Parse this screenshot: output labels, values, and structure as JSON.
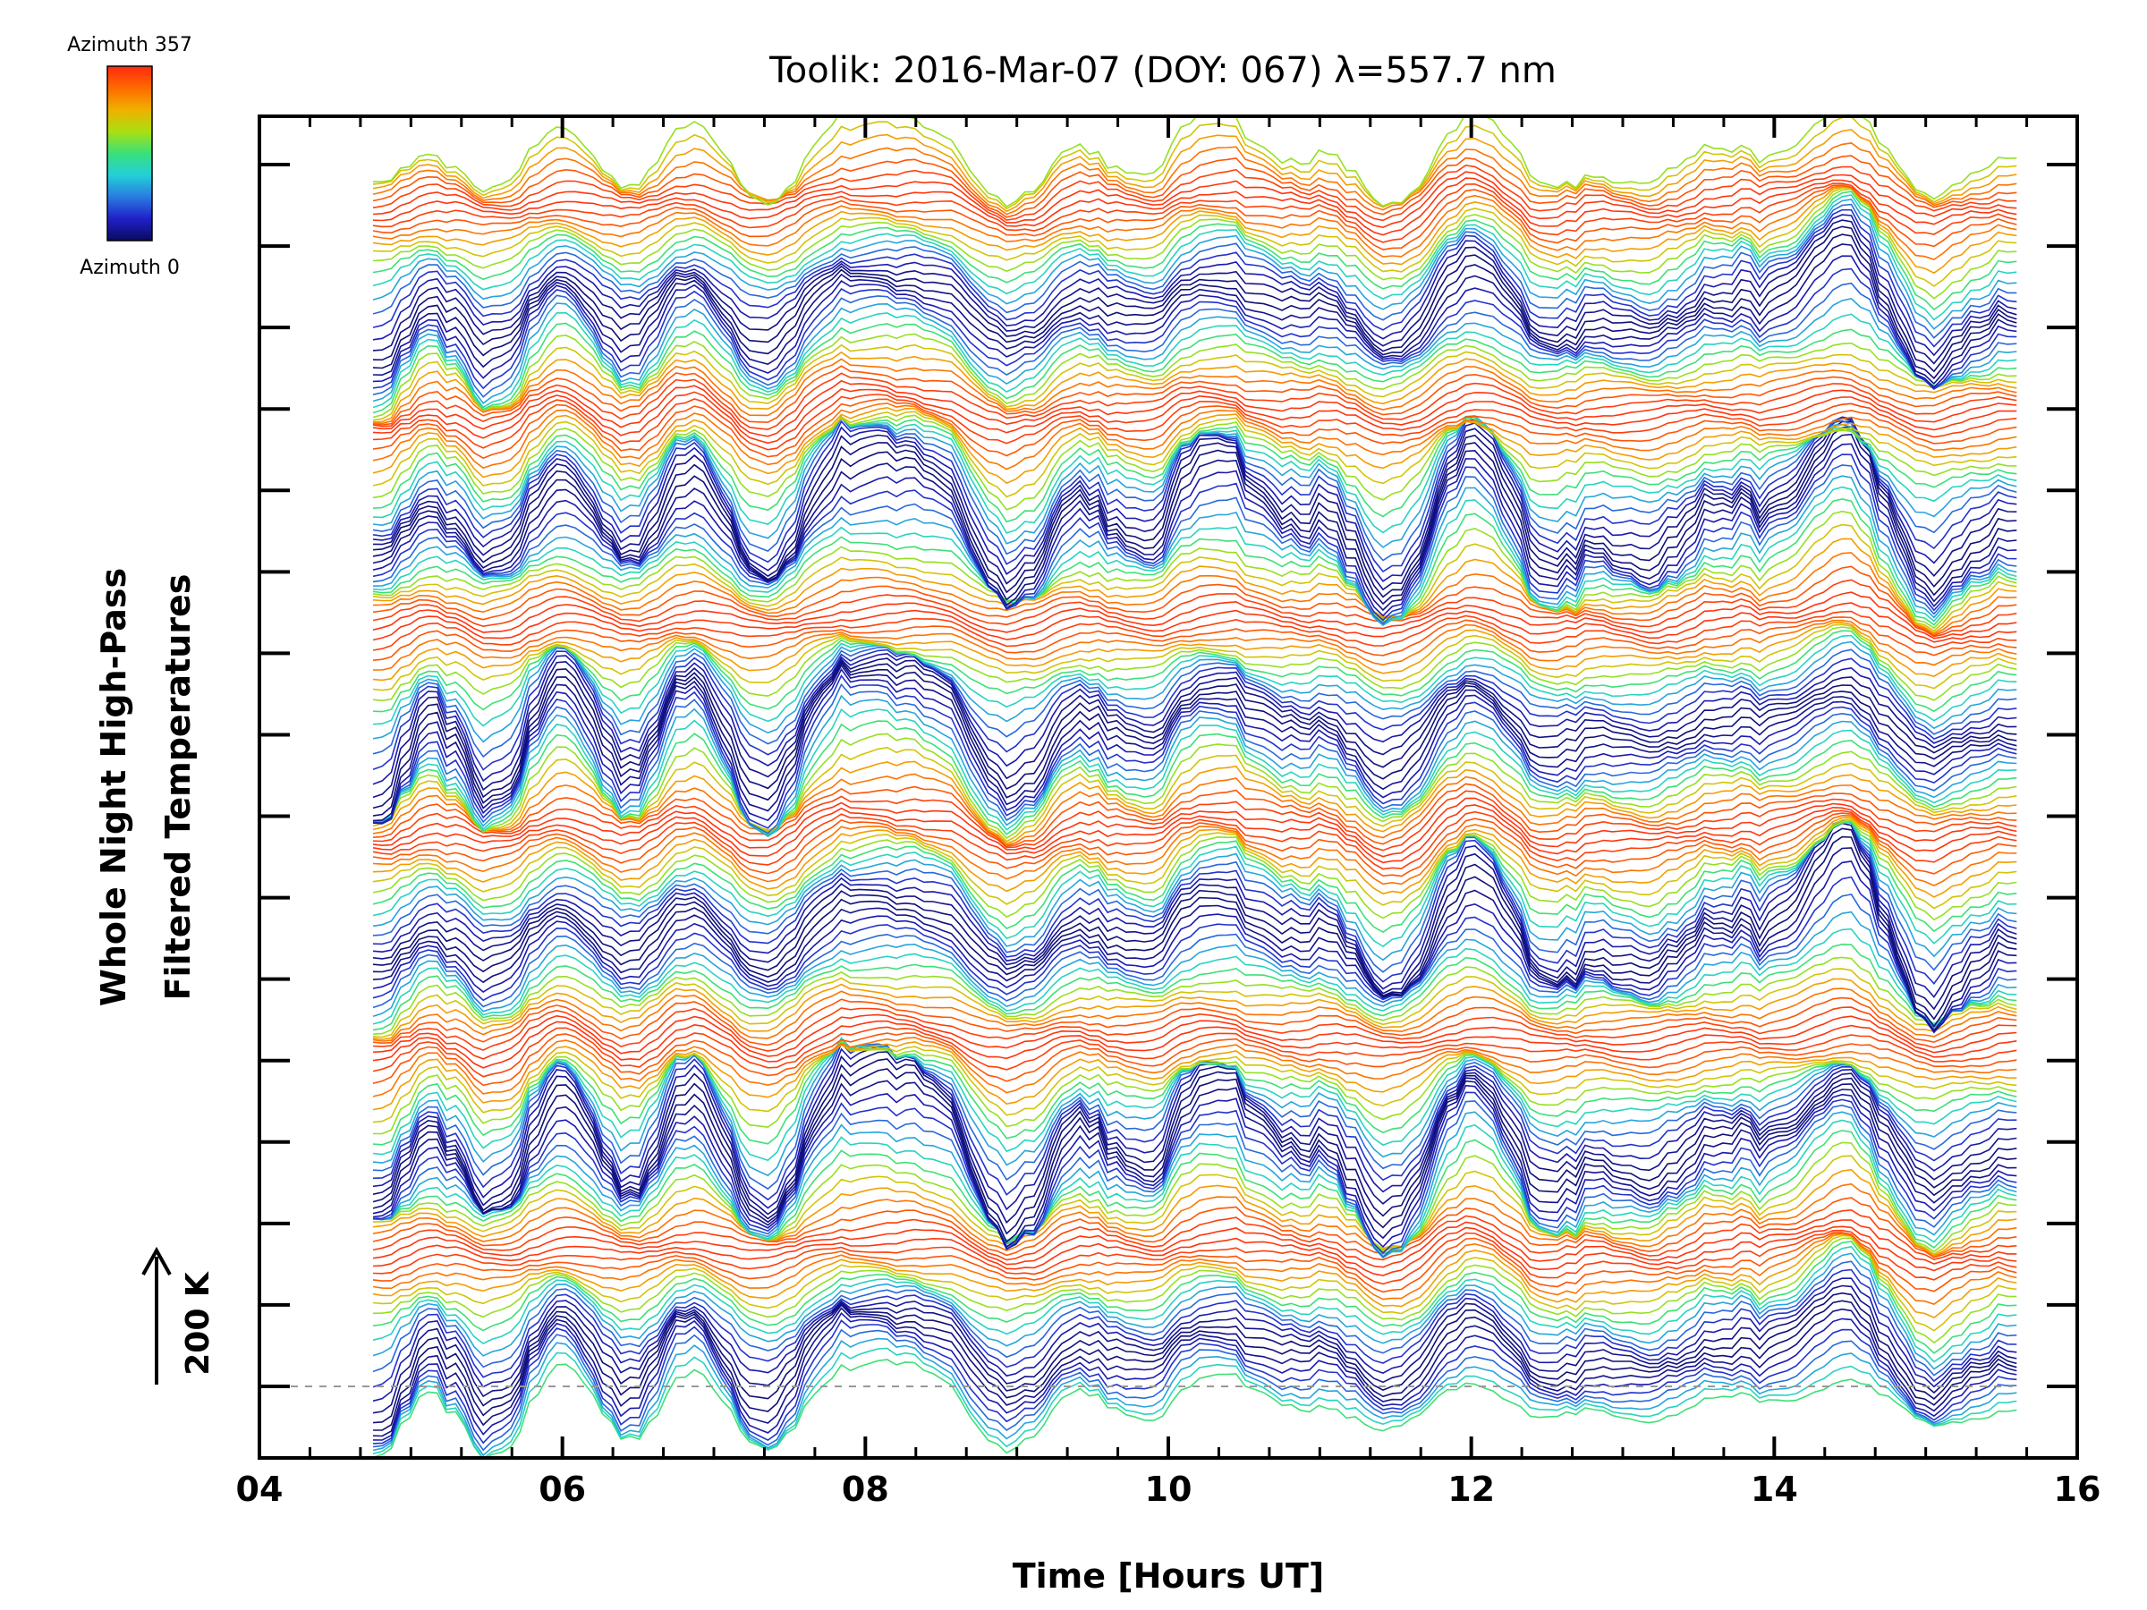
{
  "chart_data": {
    "type": "line",
    "title": "Toolik: 2016-Mar-07 (DOY: 067) λ=557.7 nm",
    "xlabel": "Time [Hours UT]",
    "ylabel_line1": "Whole Night High-Pass",
    "ylabel_line2": "Filtered Temperatures",
    "x_ticks": [
      "04",
      "06",
      "08",
      "10",
      "12",
      "14",
      "16"
    ],
    "xlim": [
      4,
      16
    ],
    "data_time_range": [
      4.75,
      15.6
    ],
    "y_tick_count": 16,
    "scale_bar_label": "200 K",
    "colorbar": {
      "top_label": "Azimuth 357",
      "bottom_label": "Azimuth 0",
      "colormap": [
        "#0a0a60",
        "#2020c8",
        "#2a7ae0",
        "#22d0d8",
        "#3ae07a",
        "#a8e010",
        "#f0b000",
        "#ff6a00",
        "#ff2a10"
      ]
    },
    "series_description": "Stacked traces of high-pass filtered temperatures, one per azimuth, colored by azimuth from 0 to 357 degrees; each trace offset vertically.",
    "band_count": 6,
    "lines_per_band": 30,
    "baseline_style": "dashed gray at bottom trace"
  }
}
